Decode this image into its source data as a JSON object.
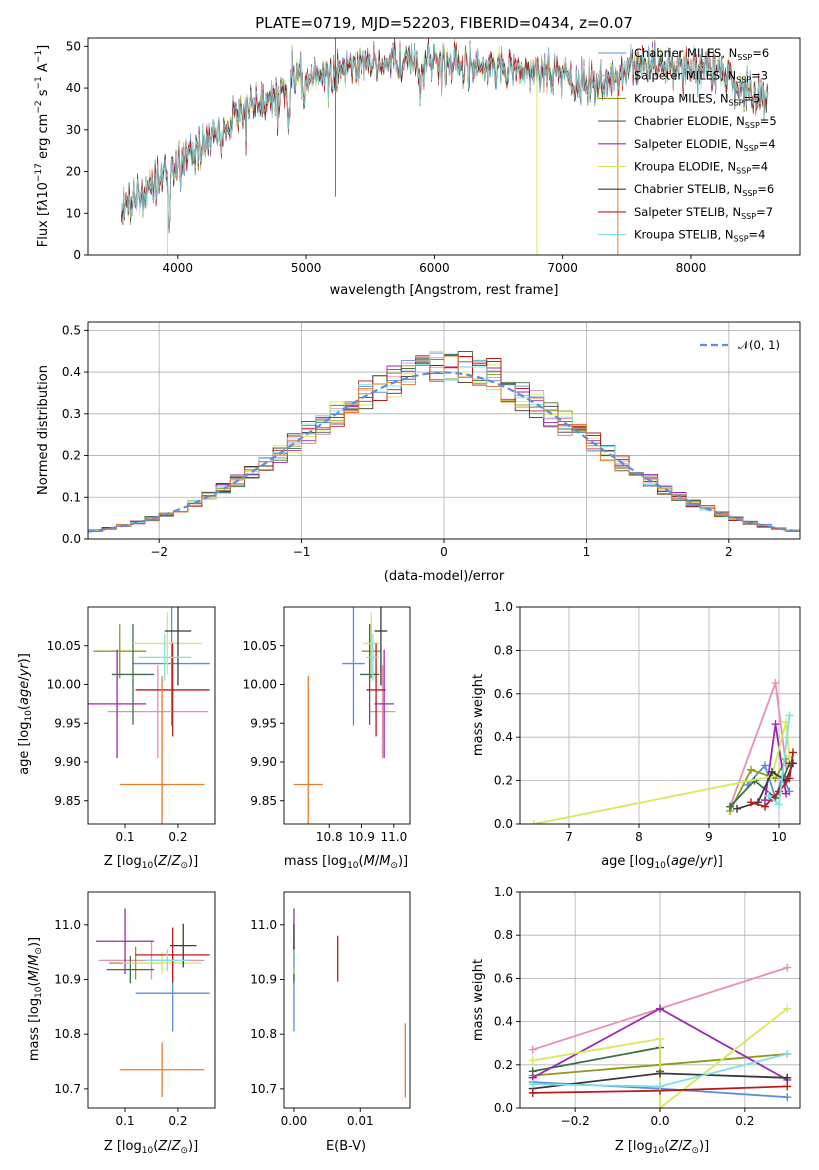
{
  "colors": {
    "Chabrier MILES": "#5b8fdb",
    "Salpeter MILES": "#e88fb6",
    "Kroupa MILES": "#8f9a1a",
    "Chabrier ELODIE": "#3c6e47",
    "Salpeter ELODIE": "#9b2ab3",
    "Kroupa ELODIE": "#d7e85c",
    "Chabrier STELIB": "#3a3a3a",
    "Salpeter STELIB": "#b71c1c",
    "Kroupa STELIB": "#7fe1e6",
    "orange": "#e87b2c",
    "gauss": "#5b8fdb"
  },
  "chart_data": [
    {
      "id": "spectrum",
      "type": "line",
      "title": "PLATE=0719, MJD=52203, FIBERID=0434, z=0.07",
      "xlabel": "wavelength [Angstrom, rest frame]",
      "ylabel": "Flux [f_λ 10^-17 erg cm^-2 s^-1 A^-1]",
      "xlim": [
        3300,
        8850
      ],
      "ylim": [
        0,
        52
      ],
      "xticks": [
        "4000",
        "5000",
        "6000",
        "7000",
        "8000"
      ],
      "yticks": [
        "0",
        "10",
        "20",
        "30",
        "40",
        "50"
      ],
      "grid": false,
      "legend_position": "top-right",
      "legend": [
        {
          "name": "Chabrier MILES",
          "nssp": "6"
        },
        {
          "name": "Salpeter MILES",
          "nssp": "3"
        },
        {
          "name": "Kroupa MILES",
          "nssp": "5"
        },
        {
          "name": "Chabrier ELODIE",
          "nssp": "5"
        },
        {
          "name": "Salpeter ELODIE",
          "nssp": "4"
        },
        {
          "name": "Kroupa ELODIE",
          "nssp": "4"
        },
        {
          "name": "Chabrier STELIB",
          "nssp": "6"
        },
        {
          "name": "Salpeter STELIB",
          "nssp": "7"
        },
        {
          "name": "Kroupa STELIB",
          "nssp": "4"
        }
      ],
      "continuum": {
        "x": [
          3560,
          3700,
          3800,
          3900,
          4000,
          4100,
          4200,
          4300,
          4400,
          4500,
          4600,
          4800,
          5000,
          5200,
          5400,
          5600,
          5800,
          6000,
          6200,
          6400,
          6600,
          6800,
          7000,
          7100,
          7200,
          7400,
          7600,
          7800,
          8000,
          8200,
          8400,
          8600
        ],
        "y": [
          11,
          14,
          17,
          18,
          21,
          24,
          27,
          29,
          32,
          34,
          36,
          40,
          42,
          44,
          45,
          46,
          46,
          46,
          45,
          45,
          44,
          44,
          43,
          40,
          41,
          43,
          46,
          45,
          45,
          44,
          40,
          36
        ]
      },
      "features": [
        {
          "x": 3933,
          "y": 8
        },
        {
          "x": 4340,
          "y": 25
        },
        {
          "x": 4861,
          "y": 32
        },
        {
          "x": 5175,
          "y": 41
        },
        {
          "x": 5890,
          "y": 38
        },
        {
          "x": 6563,
          "y": 42
        }
      ]
    },
    {
      "id": "residuals",
      "type": "histogram",
      "xlabel": "(data-model)/error",
      "ylabel": "Normed distribution",
      "xlim": [
        -2.5,
        2.5
      ],
      "ylim": [
        0,
        0.52
      ],
      "xticks": [
        "−2",
        "−1",
        "0",
        "1",
        "2"
      ],
      "yticks": [
        "0.0",
        "0.1",
        "0.2",
        "0.3",
        "0.4",
        "0.5"
      ],
      "grid": true,
      "legend_position": "top-right",
      "legend": [
        "𝒩(0, 1)"
      ],
      "bin_width": 0.1
    },
    {
      "id": "age_vs_Z",
      "type": "errorbar",
      "xlabel": "Z [log10(Z/Z☉)]",
      "ylabel": "age  [log10(age/yr)]",
      "xlim": [
        0.03,
        0.27
      ],
      "ylim": [
        9.82,
        10.1
      ],
      "xticks": [
        "0.1",
        "0.2"
      ],
      "yticks": [
        "9.85",
        "9.90",
        "9.95",
        "10.00",
        "10.05"
      ],
      "points": [
        {
          "model": "Chabrier MILES",
          "x": 0.188,
          "y": 10.027,
          "xerr": 0.072,
          "yerr": 0.08
        },
        {
          "model": "Salpeter MILES",
          "x": 0.162,
          "y": 9.965,
          "xerr": 0.095,
          "yerr": 0.06
        },
        {
          "model": "Kroupa MILES",
          "x": 0.09,
          "y": 10.043,
          "xerr": 0.05,
          "yerr": 0.035
        },
        {
          "model": "Chabrier ELODIE",
          "x": 0.115,
          "y": 10.013,
          "xerr": 0.04,
          "yerr": 0.065
        },
        {
          "model": "Salpeter ELODIE",
          "x": 0.085,
          "y": 9.975,
          "xerr": 0.055,
          "yerr": 0.07
        },
        {
          "model": "Kroupa ELODIE",
          "x": 0.18,
          "y": 10.053,
          "xerr": 0.065,
          "yerr": 0.04
        },
        {
          "model": "Chabrier STELIB",
          "x": 0.2,
          "y": 10.069,
          "xerr": 0.025,
          "yerr": 0.07
        },
        {
          "model": "Salpeter STELIB",
          "x": 0.19,
          "y": 9.993,
          "xerr": 0.07,
          "yerr": 0.06
        },
        {
          "model": "Kroupa STELIB",
          "x": 0.175,
          "y": 10.035,
          "xerr": 0.05,
          "yerr": 0.03
        },
        {
          "model": "orange",
          "x": 0.17,
          "y": 9.871,
          "xerr": 0.08,
          "yerr": 0.14
        }
      ]
    },
    {
      "id": "age_vs_mass",
      "type": "errorbar",
      "xlabel": "mass [log10(M/M☉)]",
      "ylabel": "",
      "xlim": [
        10.66,
        11.05
      ],
      "ylim": [
        9.82,
        10.1
      ],
      "xticks": [
        "10.8",
        "10.9",
        "11.0"
      ],
      "yticks": [
        "9.85",
        "9.90",
        "9.95",
        "10.00",
        "10.05"
      ],
      "points": [
        {
          "model": "Chabrier MILES",
          "x": 10.875,
          "y": 10.027,
          "xerr": 0.035,
          "yerr": 0.08
        },
        {
          "model": "Salpeter MILES",
          "x": 10.965,
          "y": 9.965,
          "xerr": 0.04,
          "yerr": 0.06
        },
        {
          "model": "Kroupa MILES",
          "x": 10.93,
          "y": 10.043,
          "xerr": 0.03,
          "yerr": 0.035
        },
        {
          "model": "Chabrier ELODIE",
          "x": 10.925,
          "y": 10.013,
          "xerr": 0.03,
          "yerr": 0.065
        },
        {
          "model": "Salpeter ELODIE",
          "x": 10.97,
          "y": 9.975,
          "xerr": 0.03,
          "yerr": 0.07
        },
        {
          "model": "Kroupa ELODIE",
          "x": 10.93,
          "y": 10.053,
          "xerr": 0.025,
          "yerr": 0.04
        },
        {
          "model": "Chabrier STELIB",
          "x": 10.96,
          "y": 10.069,
          "xerr": 0.02,
          "yerr": 0.07
        },
        {
          "model": "Salpeter STELIB",
          "x": 10.945,
          "y": 9.993,
          "xerr": 0.03,
          "yerr": 0.06
        },
        {
          "model": "Kroupa STELIB",
          "x": 10.935,
          "y": 10.035,
          "xerr": 0.02,
          "yerr": 0.03
        },
        {
          "model": "orange",
          "x": 10.735,
          "y": 9.871,
          "xerr": 0.045,
          "yerr": 0.14
        }
      ]
    },
    {
      "id": "weight_vs_age",
      "type": "line",
      "xlabel": "age  [log10(age/yr)]",
      "ylabel": "mass weight",
      "xlim": [
        6.3,
        10.3
      ],
      "ylim": [
        0,
        1.0
      ],
      "xticks": [
        "7",
        "8",
        "9",
        "10"
      ],
      "yticks": [
        "0.0",
        "0.2",
        "0.4",
        "0.6",
        "0.8",
        "1.0"
      ],
      "grid": true,
      "series": [
        {
          "model": "Chabrier MILES",
          "x": [
            9.55,
            9.8,
            9.95,
            10.05,
            10.15
          ],
          "y": [
            0.18,
            0.27,
            0.12,
            0.22,
            0.15
          ]
        },
        {
          "model": "Salpeter MILES",
          "x": [
            9.3,
            9.95,
            10.1
          ],
          "y": [
            0.08,
            0.65,
            0.27
          ]
        },
        {
          "model": "Kroupa MILES",
          "x": [
            9.3,
            9.6,
            9.95,
            10.1
          ],
          "y": [
            0.06,
            0.25,
            0.21,
            0.3
          ]
        },
        {
          "model": "Chabrier ELODIE",
          "x": [
            9.3,
            9.65,
            9.95,
            10.15
          ],
          "y": [
            0.08,
            0.2,
            0.12,
            0.28
          ]
        },
        {
          "model": "Salpeter ELODIE",
          "x": [
            9.8,
            9.95,
            10.1
          ],
          "y": [
            0.11,
            0.46,
            0.14
          ]
        },
        {
          "model": "Kroupa ELODIE",
          "x": [
            6.5,
            9.9,
            10.1,
            10.15
          ],
          "y": [
            0.0,
            0.22,
            0.47,
            0.31
          ]
        },
        {
          "model": "Chabrier STELIB",
          "x": [
            9.4,
            9.7,
            9.9,
            10.1,
            10.2
          ],
          "y": [
            0.07,
            0.1,
            0.24,
            0.2,
            0.28
          ]
        },
        {
          "model": "Salpeter STELIB",
          "x": [
            9.6,
            9.8,
            9.9,
            10.0,
            10.15,
            10.2
          ],
          "y": [
            0.1,
            0.08,
            0.12,
            0.15,
            0.21,
            0.33
          ]
        },
        {
          "model": "Kroupa STELIB",
          "x": [
            9.85,
            10.0,
            10.15
          ],
          "y": [
            0.13,
            0.09,
            0.5
          ]
        }
      ]
    },
    {
      "id": "mass_vs_Z",
      "type": "errorbar",
      "xlabel": "Z [log10(Z/Z☉)]",
      "ylabel": "mass [log10(M/M☉)]",
      "xlim": [
        0.03,
        0.27
      ],
      "ylim": [
        10.665,
        11.06
      ],
      "xticks": [
        "0.1",
        "0.2"
      ],
      "yticks": [
        "10.7",
        "10.8",
        "10.9",
        "11.0"
      ],
      "points": [
        {
          "model": "Chabrier MILES",
          "x": 0.19,
          "y": 10.875,
          "xerr": 0.07,
          "yerr": 0.07
        },
        {
          "model": "Salpeter MILES",
          "x": 0.15,
          "y": 10.935,
          "xerr": 0.1,
          "yerr": 0.035
        },
        {
          "model": "Kroupa MILES",
          "x": 0.12,
          "y": 10.93,
          "xerr": 0.05,
          "yerr": 0.03
        },
        {
          "model": "Chabrier ELODIE",
          "x": 0.11,
          "y": 10.918,
          "xerr": 0.045,
          "yerr": 0.025
        },
        {
          "model": "Salpeter ELODIE",
          "x": 0.1,
          "y": 10.97,
          "xerr": 0.055,
          "yerr": 0.06
        },
        {
          "model": "Kroupa ELODIE",
          "x": 0.17,
          "y": 10.93,
          "xerr": 0.075,
          "yerr": 0.02
        },
        {
          "model": "Chabrier STELIB",
          "x": 0.21,
          "y": 10.962,
          "xerr": 0.025,
          "yerr": 0.04
        },
        {
          "model": "Salpeter STELIB",
          "x": 0.19,
          "y": 10.945,
          "xerr": 0.07,
          "yerr": 0.05
        },
        {
          "model": "Kroupa STELIB",
          "x": 0.18,
          "y": 10.935,
          "xerr": 0.04,
          "yerr": 0.02
        },
        {
          "model": "orange",
          "x": 0.17,
          "y": 10.735,
          "xerr": 0.08,
          "yerr": 0.05
        }
      ]
    },
    {
      "id": "mass_vs_ebv",
      "type": "errorbar",
      "xlabel": "E(B-V)",
      "ylabel": "",
      "xlim": [
        -0.0015,
        0.0175
      ],
      "ylim": [
        10.665,
        11.06
      ],
      "xticks": [
        "0.00",
        "0.01"
      ],
      "yticks": [
        "10.7",
        "10.8",
        "10.9",
        "11.0"
      ],
      "points": [
        {
          "model": "Chabrier MILES",
          "x": 0.0,
          "y": 10.875,
          "xerr": 0,
          "yerr": 0.07
        },
        {
          "model": "Salpeter MILES",
          "x": 0.0,
          "y": 10.935,
          "xerr": 0,
          "yerr": 0.035
        },
        {
          "model": "Kroupa MILES",
          "x": 0.0,
          "y": 10.93,
          "xerr": 0,
          "yerr": 0.03
        },
        {
          "model": "Chabrier ELODIE",
          "x": 0.0,
          "y": 10.918,
          "xerr": 0,
          "yerr": 0.025
        },
        {
          "model": "Salpeter ELODIE",
          "x": 0.0,
          "y": 10.97,
          "xerr": 0,
          "yerr": 0.06
        },
        {
          "model": "Kroupa ELODIE",
          "x": 0.0,
          "y": 10.93,
          "xerr": 0,
          "yerr": 0.02
        },
        {
          "model": "Chabrier STELIB",
          "x": 0.0,
          "y": 10.962,
          "xerr": 0,
          "yerr": 0.04
        },
        {
          "model": "Salpeter STELIB",
          "x": 0.0066,
          "y": 10.938,
          "xerr": 0,
          "yerr": 0.042
        },
        {
          "model": "Kroupa STELIB",
          "x": 0.0,
          "y": 10.935,
          "xerr": 0,
          "yerr": 0.02
        },
        {
          "model": "orange",
          "x": 0.0168,
          "y": 10.752,
          "xerr": 0,
          "yerr": 0.068
        }
      ]
    },
    {
      "id": "weight_vs_Z",
      "type": "line",
      "xlabel": "Z [log10(Z/Z☉)]",
      "ylabel": "mass weight",
      "xlim": [
        -0.33,
        0.33
      ],
      "ylim": [
        0,
        1.0
      ],
      "xticks": [
        "−0.2",
        "0.0",
        "0.2"
      ],
      "yticks": [
        "0.0",
        "0.2",
        "0.4",
        "0.6",
        "0.8",
        "1.0"
      ],
      "grid": true,
      "series": [
        {
          "model": "Chabrier MILES",
          "x": [
            -0.3,
            0.0,
            0.3
          ],
          "y": [
            0.12,
            0.09,
            0.05
          ]
        },
        {
          "model": "Salpeter MILES",
          "x": [
            -0.3,
            0.0,
            0.3
          ],
          "y": [
            0.27,
            0.46,
            0.65
          ]
        },
        {
          "model": "Kroupa MILES",
          "x": [
            -0.3,
            0.0,
            0.3
          ],
          "y": [
            0.15,
            0.2,
            0.25
          ]
        },
        {
          "model": "Chabrier ELODIE",
          "x": [
            -0.3,
            0.0,
            0.0
          ],
          "y": [
            0.17,
            0.28,
            0.17
          ]
        },
        {
          "model": "Salpeter ELODIE",
          "x": [
            -0.3,
            0.0,
            0.3
          ],
          "y": [
            0.14,
            0.46,
            0.13
          ]
        },
        {
          "model": "Kroupa ELODIE",
          "x": [
            -0.3,
            0.0,
            0.0,
            0.3
          ],
          "y": [
            0.22,
            0.32,
            0.0,
            0.46
          ]
        },
        {
          "model": "Chabrier STELIB",
          "x": [
            -0.3,
            0.0,
            0.3
          ],
          "y": [
            0.09,
            0.16,
            0.14
          ]
        },
        {
          "model": "Salpeter STELIB",
          "x": [
            -0.3,
            0.0,
            0.3
          ],
          "y": [
            0.07,
            0.08,
            0.1
          ]
        },
        {
          "model": "Kroupa STELIB",
          "x": [
            -0.3,
            0.0,
            0.3
          ],
          "y": [
            0.11,
            0.1,
            0.25
          ]
        }
      ]
    }
  ]
}
